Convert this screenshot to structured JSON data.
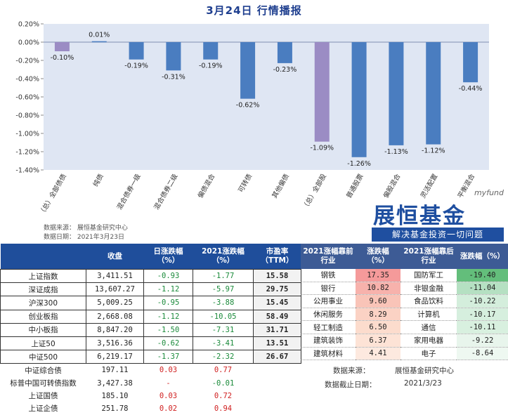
{
  "title": "3月24日  行情播报",
  "chart_data": {
    "type": "bar",
    "categories": [
      "（总）全部债债",
      "纯债",
      "混合债券一级",
      "混合债券二级",
      "偏债混合",
      "可转债",
      "其他偏债",
      "（总）全部股",
      "普通股票",
      "偏股混合",
      "灵活配置",
      "平衡混合"
    ],
    "values": [
      -0.1,
      0.01,
      -0.19,
      -0.31,
      -0.19,
      -0.62,
      -0.23,
      -1.09,
      -1.26,
      -1.13,
      -1.12,
      -0.44
    ],
    "value_labels": [
      "-0.10%",
      "0.01%",
      "-0.19%",
      "-0.31%",
      "-0.19%",
      "-0.62%",
      "-0.23%",
      "-1.09%",
      "-1.26%",
      "-1.13%",
      "-1.12%",
      "-0.44%"
    ],
    "highlight": [
      0,
      7
    ],
    "ylim": [
      -1.4,
      0.2
    ],
    "yticks": [
      "0.20%",
      "0.00%",
      "-0.20%",
      "-0.40%",
      "-0.60%",
      "-0.80%",
      "-1.00%",
      "-1.20%",
      "-1.40%"
    ],
    "colors": {
      "bar": "#4a7dc0",
      "highlight": "#9b8cc4",
      "plot_bg": "#dfe6f3"
    }
  },
  "source": {
    "line1": "数据来源：  展恒基金研究中心",
    "line2": "数据日期：  2021年3月23日"
  },
  "logo": {
    "brand": "展恒基金",
    "tag": "myfund",
    "slogan": "解决基金投资一切问题"
  },
  "left_table": {
    "headers": [
      "",
      "收盘",
      "日涨跌幅\n（%）",
      "2021涨跌幅\n（%）",
      "市盈率\n（TTM）"
    ],
    "rows": [
      [
        "上证指数",
        "3,411.51",
        "-0.93",
        "-1.77",
        "15.58"
      ],
      [
        "深证成指",
        "13,607.27",
        "-1.12",
        "-5.97",
        "29.75"
      ],
      [
        "沪深300",
        "5,009.25",
        "-0.95",
        "-3.88",
        "15.45"
      ],
      [
        "创业板指",
        "2,668.08",
        "-1.12",
        "-10.05",
        "58.49"
      ],
      [
        "中小板指",
        "8,847.20",
        "-1.50",
        "-7.31",
        "31.71"
      ],
      [
        "上证50",
        "3,516.36",
        "-0.62",
        "-3.41",
        "13.51"
      ],
      [
        "中证500",
        "6,219.17",
        "-1.37",
        "-2.32",
        "26.67"
      ],
      [
        "中证综合债",
        "197.11",
        "0.03",
        "0.77",
        ""
      ],
      [
        "标普中国可转债指数",
        "3,427.38",
        "-",
        "-0.01",
        ""
      ],
      [
        "上证国债",
        "185.10",
        "0.03",
        "0.72",
        ""
      ],
      [
        "上证企债",
        "251.78",
        "0.02",
        "0.94",
        ""
      ]
    ]
  },
  "right_table": {
    "headers": [
      "2021涨幅靠前\n行业",
      "涨跌幅\n（%）",
      "2021涨幅靠后\n行业",
      "涨跌幅（%）"
    ],
    "rows": [
      [
        "钢铁",
        "17.35",
        "国防军工",
        "-19.40"
      ],
      [
        "银行",
        "10.82",
        "非银金融",
        "-11.04"
      ],
      [
        "公用事业",
        "9.60",
        "食品饮料",
        "-10.22"
      ],
      [
        "休闲服务",
        "8.29",
        "计算机",
        "-10.17"
      ],
      [
        "轻工制造",
        "6.50",
        "通信",
        "-10.11"
      ],
      [
        "建筑装饰",
        "6.37",
        "家用电器",
        "-9.22"
      ],
      [
        "建筑材料",
        "4.41",
        "电子",
        "-8.64"
      ]
    ],
    "top_colors": [
      "#f59a9a",
      "#f7b2ac",
      "#f9c4b8",
      "#fbd2c4",
      "#fcdccd",
      "#fde3d6",
      "#fde9df"
    ],
    "bottom_colors": [
      "#63be7b",
      "#b5e0c2",
      "#d4eedc",
      "#d6efde",
      "#d8f0df",
      "#e8f5ec",
      "#eef8f1"
    ]
  },
  "footer": {
    "src_label": "数据来源：",
    "src_value": "展恒基金研究中心",
    "date_label": "数据截止日期：",
    "date_value": "2021/3/23"
  }
}
